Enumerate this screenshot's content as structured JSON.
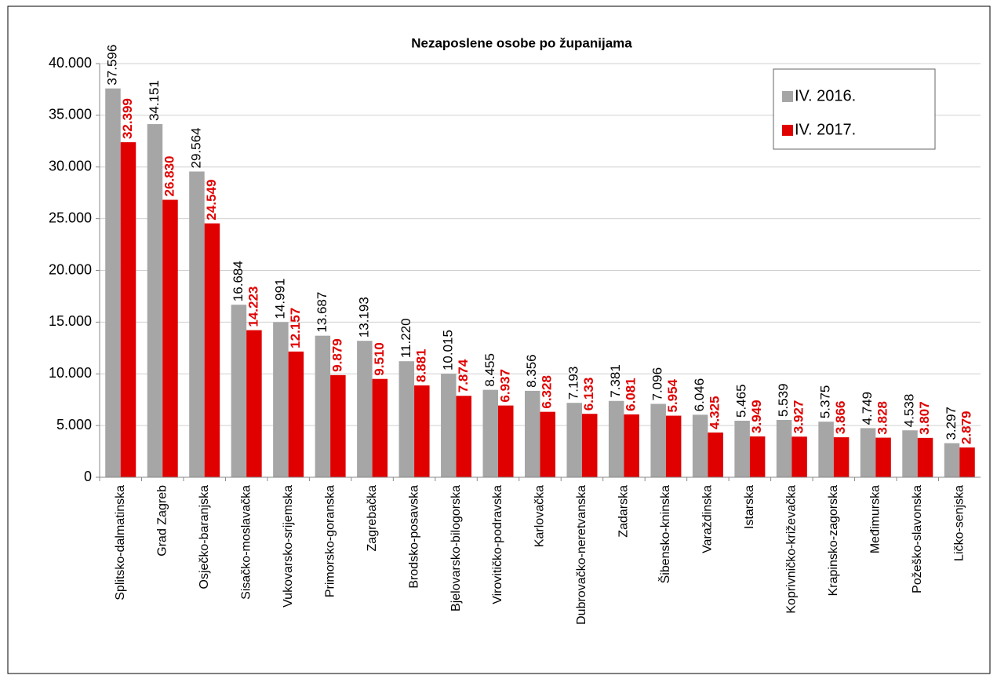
{
  "chart_data": {
    "type": "bar",
    "title": "Nezaposlene osobe po županijama",
    "categories": [
      "Splitsko-dalmatinska",
      "Grad Zagreb",
      "Osječko-baranjska",
      "Sisačko-moslavačka",
      "Vukovarsko-srijemska",
      "Primorsko-goranska",
      "Zagrebačka",
      "Brodsko-posavska",
      "Bjelovarsko-bilogorska",
      "Virovitičko-podravska",
      "Karlovačka",
      "Dubrovačko-neretvanska",
      "Zadarska",
      "Šibensko-kninska",
      "Varaždinska",
      "Istarska",
      "Koprivničko-križevačka",
      "Krapinsko-zagorska",
      "Međimurska",
      "Požeško-slavonska",
      "Ličko-senjska"
    ],
    "series": [
      {
        "name": "IV. 2016.",
        "color": "#a6a6a6",
        "values": [
          37596,
          34151,
          29564,
          16684,
          14991,
          13687,
          13193,
          11220,
          10015,
          8455,
          8356,
          7193,
          7381,
          7096,
          6046,
          5465,
          5539,
          5375,
          4749,
          4538,
          3297
        ],
        "value_labels": [
          "37.596",
          "34.151",
          "29.564",
          "16.684",
          "14.991",
          "13.687",
          "13.193",
          "11.220",
          "10.015",
          "8.455",
          "8.356",
          "7.193",
          "7.381",
          "7.096",
          "6.046",
          "5.465",
          "5.539",
          "5.375",
          "4.749",
          "4.538",
          "3.297"
        ]
      },
      {
        "name": "IV. 2017.",
        "color": "#e00000",
        "values": [
          32399,
          26830,
          24549,
          14223,
          12157,
          9879,
          9510,
          8881,
          7874,
          6937,
          6328,
          6133,
          6081,
          5954,
          4325,
          3949,
          3927,
          3866,
          3828,
          3807,
          2879
        ],
        "value_labels": [
          "32.399",
          "26.830",
          "24.549",
          "14.223",
          "12.157",
          "9.879",
          "9.510",
          "8.881",
          "7.874",
          "6.937",
          "6.328",
          "6.133",
          "6.081",
          "5.954",
          "4.325",
          "3.949",
          "3.927",
          "3.866",
          "3.828",
          "3.807",
          "2.879"
        ]
      }
    ],
    "ylim": [
      0,
      40000
    ],
    "yticks": [
      0,
      {
        "value": 5000,
        "label": "5.000"
      },
      {
        "value": 10000,
        "label": "10.000"
      },
      {
        "value": 15000,
        "label": "15.000"
      },
      {
        "value": 20000,
        "label": "20.000"
      },
      {
        "value": 25000,
        "label": "25.000"
      },
      {
        "value": 30000,
        "label": "30.000"
      },
      {
        "value": 35000,
        "label": "35.000"
      },
      {
        "value": 40000,
        "label": "40.000"
      }
    ],
    "grid": true,
    "legend": "top-right"
  }
}
